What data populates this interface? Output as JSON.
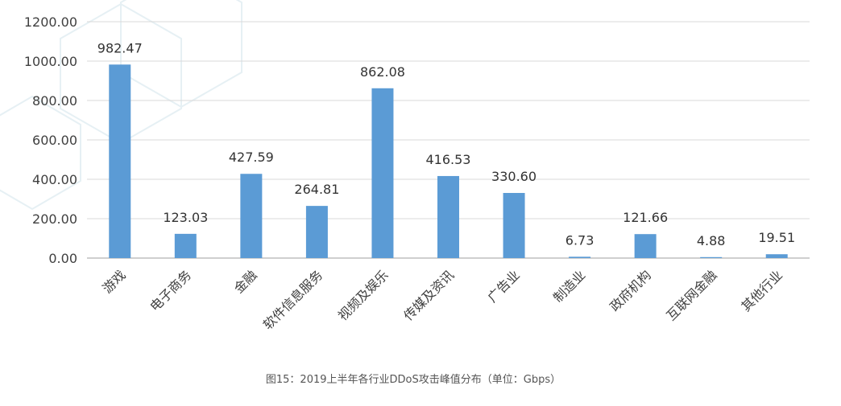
{
  "chart_data": {
    "type": "bar",
    "categories": [
      "游戏",
      "电子商务",
      "金融",
      "软件信息服务",
      "视频及娱乐",
      "传媒及资讯",
      "广告业",
      "制造业",
      "政府机构",
      "互联网金融",
      "其他行业"
    ],
    "series": [
      {
        "values": [
          982.47,
          123.03,
          427.59,
          264.81,
          862.08,
          416.53,
          330.6,
          6.73,
          121.66,
          4.88,
          19.51
        ]
      }
    ],
    "data_labels": [
      "982.47",
      "123.03",
      "427.59",
      "264.81",
      "862.08",
      "416.53",
      "330.60",
      "6.73",
      "121.66",
      "4.88",
      "19.51"
    ],
    "yticks": [
      "0.00",
      "200.00",
      "400.00",
      "600.00",
      "800.00",
      "1000.00",
      "1200.00"
    ],
    "ylim": [
      0,
      1200
    ],
    "grid": true,
    "legend": "none",
    "colors": {
      "bar": "#5b9bd5",
      "grid": "#d9d9d9",
      "axis": "#bfbfbf"
    },
    "caption": "图15：2019上半年各行业DDoS攻击峰值分布（单位：Gbps）"
  }
}
